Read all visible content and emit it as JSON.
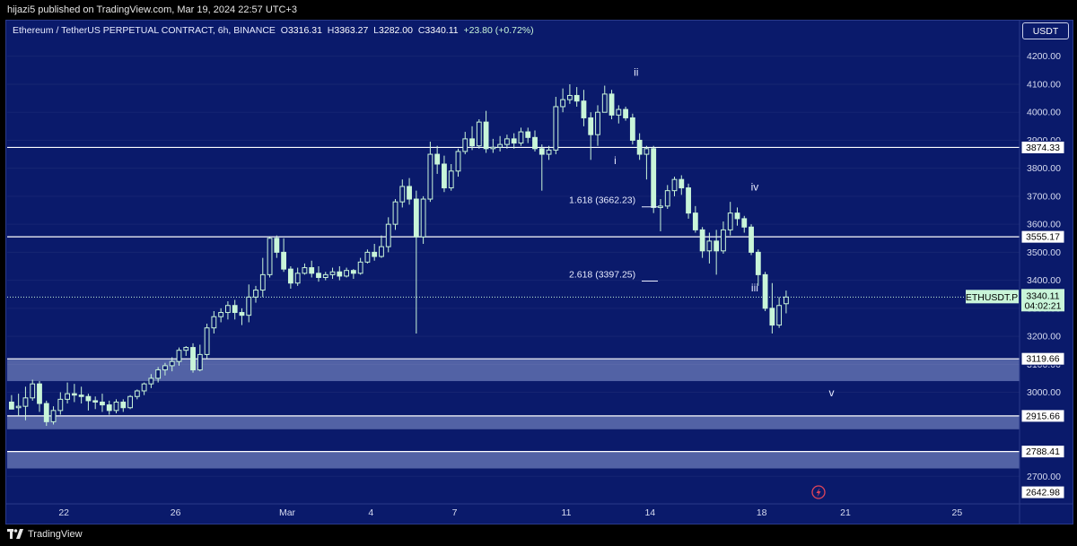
{
  "header": {
    "published": "hijazi5 published on TradingView.com, Mar 19, 2024 22:57 UTC+3"
  },
  "legend": {
    "symbol": "Ethereum / TetherUS PERPETUAL CONTRACT, 6h, BINANCE",
    "open_label": "O",
    "open": "3316.31",
    "high_label": "H",
    "high": "3363.27",
    "low_label": "L",
    "low": "3282.00",
    "close_label": "C",
    "close": "3340.11",
    "change": "+23.80 (+0.72%)"
  },
  "toolbar": {
    "currency": "USDT"
  },
  "footer": {
    "brand": "TradingView"
  },
  "colors": {
    "background": "#0a1a6b",
    "candle": "#c9f5d9",
    "level_line": "#ffffff",
    "zone_fill": "#6b7bb8"
  },
  "chart_data": {
    "type": "candlestick",
    "title": "",
    "ylim": [
      2640,
      4260
    ],
    "y_ticks": [
      "2700.00",
      "3000.00",
      "3100.00",
      "3200.00",
      "3300.00",
      "3400.00",
      "3500.00",
      "3600.00",
      "3700.00",
      "3800.00",
      "3900.00",
      "4000.00",
      "4100.00",
      "4200.00"
    ],
    "x_ticks": [
      {
        "label": "22",
        "date": "2024-02-22"
      },
      {
        "label": "26",
        "date": "2024-02-26"
      },
      {
        "label": "Mar",
        "date": "2024-03-01"
      },
      {
        "label": "4",
        "date": "2024-03-04"
      },
      {
        "label": "7",
        "date": "2024-03-07"
      },
      {
        "label": "11",
        "date": "2024-03-11"
      },
      {
        "label": "14",
        "date": "2024-03-14"
      },
      {
        "label": "18",
        "date": "2024-03-18"
      },
      {
        "label": "21",
        "date": "2024-03-21"
      },
      {
        "label": "25",
        "date": "2024-03-25"
      }
    ],
    "levels": [
      {
        "value": "3874.33",
        "price": 3874.33
      },
      {
        "value": "3555.17",
        "price": 3555.17
      },
      {
        "value": "3119.66",
        "price": 3119.66
      },
      {
        "value": "2915.66",
        "price": 2915.66
      },
      {
        "value": "2788.41",
        "price": 2788.41
      },
      {
        "value": "2642.98",
        "price": 2642.98
      }
    ],
    "zones": [
      {
        "from": 3040,
        "to": 3119.66
      },
      {
        "from": 2868,
        "to": 2915.66
      },
      {
        "from": 2728,
        "to": 2788.41
      }
    ],
    "current_price": {
      "symbol": "ETHUSDT.P",
      "price": "3340.11",
      "countdown": "04:02:21",
      "value": 3340.11
    },
    "fib_labels": [
      {
        "text": "1.618 (3662.23)",
        "price": 3662.23
      },
      {
        "text": "2.618 (3397.25)",
        "price": 3397.25
      }
    ],
    "wave_labels": [
      {
        "text": "i",
        "date": "2024-03-12T18:00",
        "price": 3815
      },
      {
        "text": "ii",
        "date": "2024-03-13T12:00",
        "price": 4130
      },
      {
        "text": "iii",
        "date": "2024-03-17T18:00",
        "price": 3360
      },
      {
        "text": "iv",
        "date": "2024-03-17T18:00",
        "price": 3720
      },
      {
        "text": "v",
        "date": "2024-03-20T12:00",
        "price": 2985
      }
    ],
    "series_start": "2024-02-20T00:00",
    "interval_hours": 6,
    "candles": [
      [
        2965,
        2940,
        2990,
        2945
      ],
      [
        2945,
        2950,
        2995,
        2915
      ],
      [
        2950,
        2980,
        3020,
        2900
      ],
      [
        2980,
        3030,
        3045,
        2970
      ],
      [
        3030,
        2960,
        3040,
        2930
      ],
      [
        2960,
        2895,
        2970,
        2880
      ],
      [
        2895,
        2935,
        2950,
        2885
      ],
      [
        2935,
        2975,
        3000,
        2920
      ],
      [
        2975,
        2995,
        3035,
        2960
      ],
      [
        2995,
        2990,
        3030,
        2965
      ],
      [
        2990,
        2985,
        3020,
        2960
      ],
      [
        2985,
        2970,
        2995,
        2935
      ],
      [
        2970,
        2965,
        2985,
        2940
      ],
      [
        2965,
        2955,
        2995,
        2930
      ],
      [
        2955,
        2935,
        2970,
        2920
      ],
      [
        2935,
        2965,
        2975,
        2925
      ],
      [
        2965,
        2945,
        2975,
        2930
      ],
      [
        2945,
        2985,
        2990,
        2940
      ],
      [
        2985,
        3005,
        3010,
        2975
      ],
      [
        3005,
        3030,
        3035,
        2990
      ],
      [
        3030,
        3050,
        3065,
        3015
      ],
      [
        3050,
        3080,
        3090,
        3035
      ],
      [
        3080,
        3095,
        3105,
        3060
      ],
      [
        3095,
        3110,
        3125,
        3075
      ],
      [
        3110,
        3150,
        3160,
        3095
      ],
      [
        3150,
        3160,
        3165,
        3130
      ],
      [
        3160,
        3080,
        3175,
        3070
      ],
      [
        3080,
        3135,
        3170,
        3075
      ],
      [
        3135,
        3230,
        3245,
        3120
      ],
      [
        3230,
        3270,
        3290,
        3210
      ],
      [
        3270,
        3285,
        3300,
        3250
      ],
      [
        3285,
        3310,
        3325,
        3260
      ],
      [
        3310,
        3285,
        3330,
        3260
      ],
      [
        3285,
        3275,
        3300,
        3240
      ],
      [
        3275,
        3340,
        3385,
        3250
      ],
      [
        3340,
        3365,
        3380,
        3320
      ],
      [
        3365,
        3420,
        3480,
        3340
      ],
      [
        3420,
        3550,
        3555,
        3410
      ],
      [
        3550,
        3500,
        3560,
        3480
      ],
      [
        3500,
        3440,
        3550,
        3430
      ],
      [
        3440,
        3390,
        3450,
        3370
      ],
      [
        3390,
        3425,
        3445,
        3380
      ],
      [
        3425,
        3445,
        3460,
        3420
      ],
      [
        3445,
        3425,
        3470,
        3410
      ],
      [
        3425,
        3410,
        3450,
        3395
      ],
      [
        3410,
        3420,
        3430,
        3400
      ],
      [
        3420,
        3430,
        3445,
        3405
      ],
      [
        3430,
        3415,
        3450,
        3400
      ],
      [
        3415,
        3435,
        3445,
        3410
      ],
      [
        3435,
        3425,
        3440,
        3405
      ],
      [
        3425,
        3465,
        3480,
        3420
      ],
      [
        3465,
        3500,
        3510,
        3460
      ],
      [
        3500,
        3485,
        3530,
        3470
      ],
      [
        3485,
        3520,
        3560,
        3480
      ],
      [
        3520,
        3600,
        3625,
        3500
      ],
      [
        3600,
        3680,
        3690,
        3580
      ],
      [
        3680,
        3735,
        3760,
        3660
      ],
      [
        3735,
        3690,
        3765,
        3670
      ],
      [
        3690,
        3555,
        3720,
        3210
      ],
      [
        3555,
        3690,
        3700,
        3530
      ],
      [
        3690,
        3850,
        3895,
        3680
      ],
      [
        3850,
        3815,
        3880,
        3780
      ],
      [
        3815,
        3730,
        3845,
        3715
      ],
      [
        3730,
        3790,
        3815,
        3720
      ],
      [
        3790,
        3860,
        3870,
        3770
      ],
      [
        3860,
        3905,
        3930,
        3850
      ],
      [
        3905,
        3880,
        3950,
        3865
      ],
      [
        3880,
        3965,
        3975,
        3870
      ],
      [
        3965,
        3870,
        4005,
        3855
      ],
      [
        3870,
        3875,
        3905,
        3855
      ],
      [
        3875,
        3885,
        3915,
        3860
      ],
      [
        3885,
        3905,
        3920,
        3870
      ],
      [
        3905,
        3890,
        3925,
        3870
      ],
      [
        3890,
        3930,
        3945,
        3880
      ],
      [
        3930,
        3910,
        3945,
        3890
      ],
      [
        3910,
        3870,
        3935,
        3860
      ],
      [
        3870,
        3850,
        3885,
        3720
      ],
      [
        3850,
        3865,
        3880,
        3830
      ],
      [
        3865,
        4020,
        4055,
        3850
      ],
      [
        4020,
        4045,
        4085,
        4000
      ],
      [
        4045,
        4060,
        4100,
        4030
      ],
      [
        4060,
        4040,
        4090,
        4020
      ],
      [
        4040,
        3980,
        4080,
        3950
      ],
      [
        3980,
        3920,
        4000,
        3830
      ],
      [
        3920,
        4000,
        4025,
        3880
      ],
      [
        4000,
        4065,
        4095,
        4035
      ],
      [
        4065,
        3990,
        4080,
        3975
      ],
      [
        3990,
        4010,
        4025,
        3960
      ],
      [
        4010,
        3980,
        4020,
        3970
      ],
      [
        3980,
        3900,
        3995,
        3885
      ],
      [
        3900,
        3850,
        3925,
        3830
      ],
      [
        3850,
        3870,
        3880,
        3760
      ],
      [
        3870,
        3660,
        3880,
        3640
      ],
      [
        3660,
        3665,
        3690,
        3575
      ],
      [
        3665,
        3720,
        3740,
        3655
      ],
      [
        3720,
        3760,
        3770,
        3700
      ],
      [
        3760,
        3730,
        3775,
        3705
      ],
      [
        3730,
        3640,
        3745,
        3620
      ],
      [
        3640,
        3580,
        3665,
        3570
      ],
      [
        3580,
        3505,
        3590,
        3480
      ],
      [
        3505,
        3540,
        3570,
        3460
      ],
      [
        3540,
        3505,
        3580,
        3420
      ],
      [
        3505,
        3580,
        3610,
        3495
      ],
      [
        3580,
        3640,
        3680,
        3560
      ],
      [
        3640,
        3620,
        3660,
        3595
      ],
      [
        3620,
        3590,
        3630,
        3570
      ],
      [
        3590,
        3500,
        3600,
        3490
      ],
      [
        3500,
        3420,
        3510,
        3380
      ],
      [
        3420,
        3300,
        3430,
        3290
      ],
      [
        3300,
        3240,
        3390,
        3210
      ],
      [
        3240,
        3310,
        3340,
        3230
      ],
      [
        3316.31,
        3340.11,
        3363.27,
        3282.0
      ]
    ]
  }
}
